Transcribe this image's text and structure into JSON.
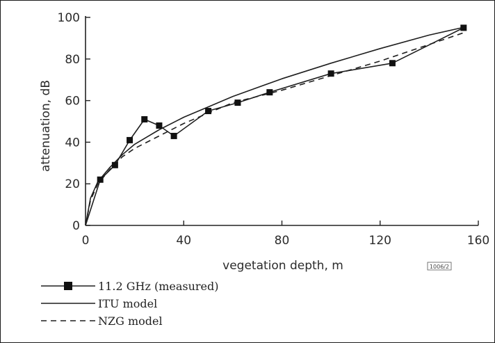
{
  "chart_data": {
    "type": "line",
    "xlabel": "vegetation depth, m",
    "ylabel": "attenuation, dB",
    "xlim": [
      0,
      160
    ],
    "ylim": [
      0,
      100
    ],
    "x_ticks": [
      "0",
      "40",
      "80",
      "120",
      "160"
    ],
    "y_ticks": [
      "0",
      "20",
      "40",
      "60",
      "80",
      "100"
    ],
    "grid": false,
    "legend_placement": "bottom-left",
    "figure_id": "1006/2",
    "series": [
      {
        "name": "11.2 GHz (measured)",
        "style": "solid-with-square-markers",
        "x": [
          0,
          6,
          12,
          18,
          24,
          30,
          36,
          50,
          62,
          75,
          100,
          125,
          154
        ],
        "y": [
          0,
          22,
          29,
          41,
          51,
          48,
          43,
          55,
          59,
          64,
          73,
          78,
          95
        ]
      },
      {
        "name": "ITU model",
        "style": "solid",
        "x": [
          0,
          2,
          5,
          10,
          15,
          20,
          25,
          30,
          40,
          50,
          60,
          80,
          100,
          120,
          140,
          155
        ],
        "y": [
          0,
          13,
          21,
          28,
          34,
          39,
          42.5,
          46,
          52,
          57,
          62,
          70.5,
          78,
          85,
          91.5,
          95.5
        ]
      },
      {
        "name": "NZG model",
        "style": "dashed",
        "x": [
          0,
          2,
          5,
          10,
          15,
          20,
          25,
          30,
          40,
          50,
          60,
          80,
          100,
          120,
          140,
          155
        ],
        "y": [
          0,
          12,
          20,
          27,
          33,
          37,
          40,
          43,
          49,
          54,
          59,
          65,
          72,
          79,
          87,
          93
        ]
      }
    ]
  },
  "colors": {
    "line": "#1e1e1e",
    "marker": "#111111",
    "axis": "#222222"
  }
}
